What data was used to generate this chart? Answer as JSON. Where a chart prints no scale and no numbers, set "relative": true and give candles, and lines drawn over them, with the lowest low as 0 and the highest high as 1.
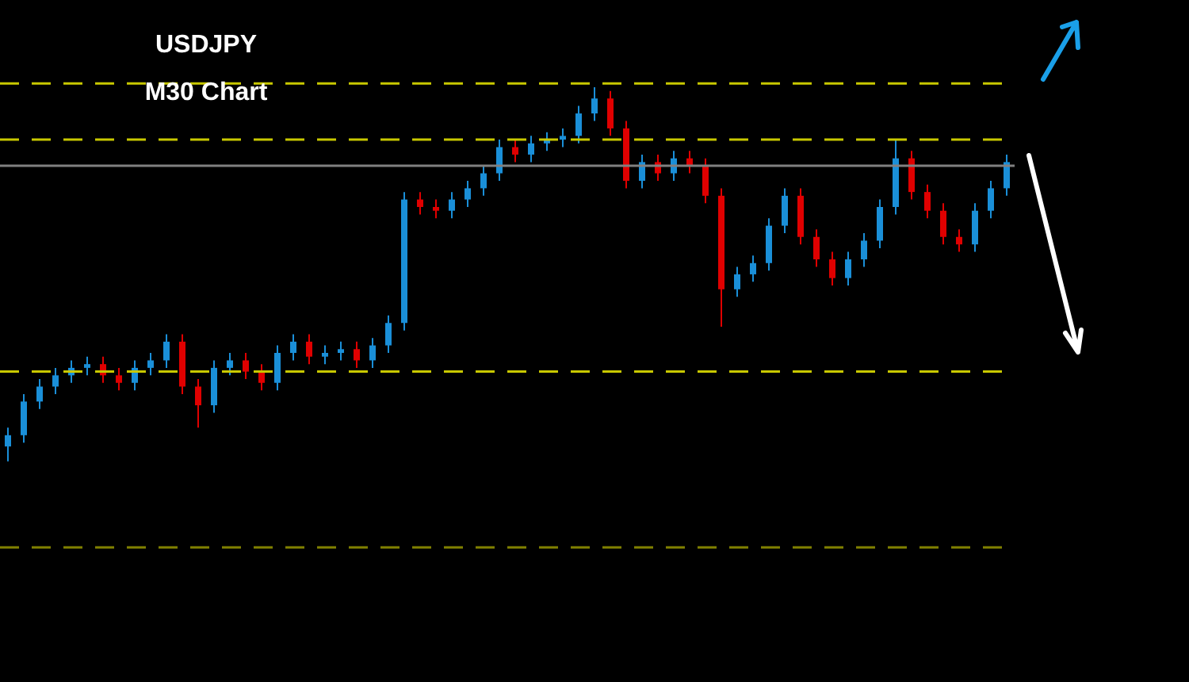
{
  "chart_data": {
    "type": "candlestick",
    "title": "USDJPY",
    "subtitle": "M30 Chart",
    "relative": true,
    "categories": [
      null,
      null,
      null,
      null,
      null,
      null,
      null,
      null,
      null,
      null,
      null,
      null,
      null,
      null,
      null,
      null,
      null,
      null,
      null,
      null,
      null,
      null,
      null,
      null,
      null,
      null,
      null,
      null,
      null,
      null,
      null,
      null,
      null,
      null,
      null,
      null,
      null,
      null,
      null,
      null,
      null,
      null,
      null,
      null,
      null,
      null,
      null,
      null,
      null,
      null,
      null,
      null,
      null,
      null,
      null,
      null,
      null,
      null,
      null,
      null,
      null,
      null,
      null,
      null
    ],
    "ohlc": [
      [
        0.04,
        0.09,
        0,
        0.07
      ],
      [
        0.07,
        0.18,
        0.05,
        0.16
      ],
      [
        0.16,
        0.22,
        0.14,
        0.2
      ],
      [
        0.2,
        0.25,
        0.18,
        0.23
      ],
      [
        0.23,
        0.27,
        0.21,
        0.25
      ],
      [
        0.25,
        0.28,
        0.23,
        0.26
      ],
      [
        0.26,
        0.28,
        0.21,
        0.23
      ],
      [
        0.23,
        0.25,
        0.19,
        0.21
      ],
      [
        0.21,
        0.27,
        0.19,
        0.25
      ],
      [
        0.25,
        0.29,
        0.23,
        0.27
      ],
      [
        0.27,
        0.34,
        0.25,
        0.32
      ],
      [
        0.32,
        0.34,
        0.18,
        0.2
      ],
      [
        0.2,
        0.22,
        0.09,
        0.15
      ],
      [
        0.15,
        0.27,
        0.13,
        0.25
      ],
      [
        0.25,
        0.29,
        0.23,
        0.27
      ],
      [
        0.27,
        0.29,
        0.22,
        0.24
      ],
      [
        0.24,
        0.26,
        0.19,
        0.21
      ],
      [
        0.21,
        0.31,
        0.19,
        0.29
      ],
      [
        0.29,
        0.34,
        0.27,
        0.32
      ],
      [
        0.32,
        0.34,
        0.26,
        0.28
      ],
      [
        0.28,
        0.31,
        0.26,
        0.29
      ],
      [
        0.29,
        0.32,
        0.27,
        0.3
      ],
      [
        0.3,
        0.32,
        0.25,
        0.27
      ],
      [
        0.27,
        0.33,
        0.25,
        0.31
      ],
      [
        0.31,
        0.39,
        0.29,
        0.37
      ],
      [
        0.37,
        0.72,
        0.35,
        0.7
      ],
      [
        0.7,
        0.72,
        0.66,
        0.68
      ],
      [
        0.68,
        0.7,
        0.65,
        0.67
      ],
      [
        0.67,
        0.72,
        0.65,
        0.7
      ],
      [
        0.7,
        0.75,
        0.68,
        0.73
      ],
      [
        0.73,
        0.79,
        0.71,
        0.77
      ],
      [
        0.77,
        0.86,
        0.75,
        0.84
      ],
      [
        0.84,
        0.86,
        0.8,
        0.82
      ],
      [
        0.82,
        0.87,
        0.8,
        0.85
      ],
      [
        0.85,
        0.88,
        0.83,
        0.86
      ],
      [
        0.86,
        0.89,
        0.84,
        0.87
      ],
      [
        0.87,
        0.95,
        0.85,
        0.93
      ],
      [
        0.93,
        1,
        0.91,
        0.97
      ],
      [
        0.97,
        0.99,
        0.87,
        0.89
      ],
      [
        0.89,
        0.91,
        0.73,
        0.75
      ],
      [
        0.75,
        0.82,
        0.73,
        0.8
      ],
      [
        0.8,
        0.82,
        0.75,
        0.77
      ],
      [
        0.77,
        0.83,
        0.75,
        0.81
      ],
      [
        0.81,
        0.83,
        0.77,
        0.79
      ],
      [
        0.79,
        0.81,
        0.69,
        0.71
      ],
      [
        0.71,
        0.73,
        0.36,
        0.46
      ],
      [
        0.46,
        0.52,
        0.44,
        0.5
      ],
      [
        0.5,
        0.55,
        0.48,
        0.53
      ],
      [
        0.53,
        0.65,
        0.51,
        0.63
      ],
      [
        0.63,
        0.73,
        0.61,
        0.71
      ],
      [
        0.71,
        0.73,
        0.58,
        0.6
      ],
      [
        0.6,
        0.62,
        0.52,
        0.54
      ],
      [
        0.54,
        0.56,
        0.47,
        0.49
      ],
      [
        0.49,
        0.56,
        0.47,
        0.54
      ],
      [
        0.54,
        0.61,
        0.52,
        0.59
      ],
      [
        0.59,
        0.7,
        0.57,
        0.68
      ],
      [
        0.68,
        0.86,
        0.66,
        0.81
      ],
      [
        0.81,
        0.83,
        0.7,
        0.72
      ],
      [
        0.72,
        0.74,
        0.65,
        0.67
      ],
      [
        0.67,
        0.69,
        0.58,
        0.6
      ],
      [
        0.6,
        0.62,
        0.56,
        0.58
      ],
      [
        0.58,
        0.69,
        0.56,
        0.67
      ],
      [
        0.67,
        0.75,
        0.65,
        0.73
      ],
      [
        0.73,
        0.82,
        0.71,
        0.8
      ]
    ],
    "colors": [
      "#1a8fd8",
      "#1a8fd8",
      "#1a8fd8",
      "#1a8fd8",
      "#1a8fd8",
      "#1a8fd8",
      "#e00000",
      "#e00000",
      "#1a8fd8",
      "#1a8fd8",
      "#1a8fd8",
      "#e00000",
      "#e00000",
      "#1a8fd8",
      "#1a8fd8",
      "#e00000",
      "#e00000",
      "#1a8fd8",
      "#1a8fd8",
      "#e00000",
      "#1a8fd8",
      "#1a8fd8",
      "#e00000",
      "#1a8fd8",
      "#1a8fd8",
      "#1a8fd8",
      "#e00000",
      "#e00000",
      "#1a8fd8",
      "#1a8fd8",
      "#1a8fd8",
      "#1a8fd8",
      "#e00000",
      "#1a8fd8",
      "#1a8fd8",
      "#1a8fd8",
      "#1a8fd8",
      "#1a8fd8",
      "#e00000",
      "#e00000",
      "#1a8fd8",
      "#e00000",
      "#1a8fd8",
      "#e00000",
      "#e00000",
      "#e00000",
      "#1a8fd8",
      "#1a8fd8",
      "#1a8fd8",
      "#1a8fd8",
      "#e00000",
      "#e00000",
      "#e00000",
      "#1a8fd8",
      "#1a8fd8",
      "#1a8fd8",
      "#1a8fd8",
      "#e00000",
      "#e00000",
      "#e00000",
      "#e00000",
      "#1a8fd8",
      "#1a8fd8",
      "#1a8fd8"
    ],
    "ref_lines": [
      {
        "axis": "y",
        "value": 1.01,
        "color": "#c8c800",
        "line_style": "dashed"
      },
      {
        "axis": "y",
        "value": 0.86,
        "color": "#c8c800",
        "line_style": "dashed"
      },
      {
        "axis": "y",
        "value": 0.79,
        "color": "#808080",
        "line_style": "solid"
      },
      {
        "axis": "y",
        "value": 0.24,
        "color": "#c8c800",
        "line_style": "dashed"
      },
      {
        "axis": "y",
        "value": -0.23,
        "color": "#808000",
        "line_style": "dashed"
      }
    ]
  }
}
